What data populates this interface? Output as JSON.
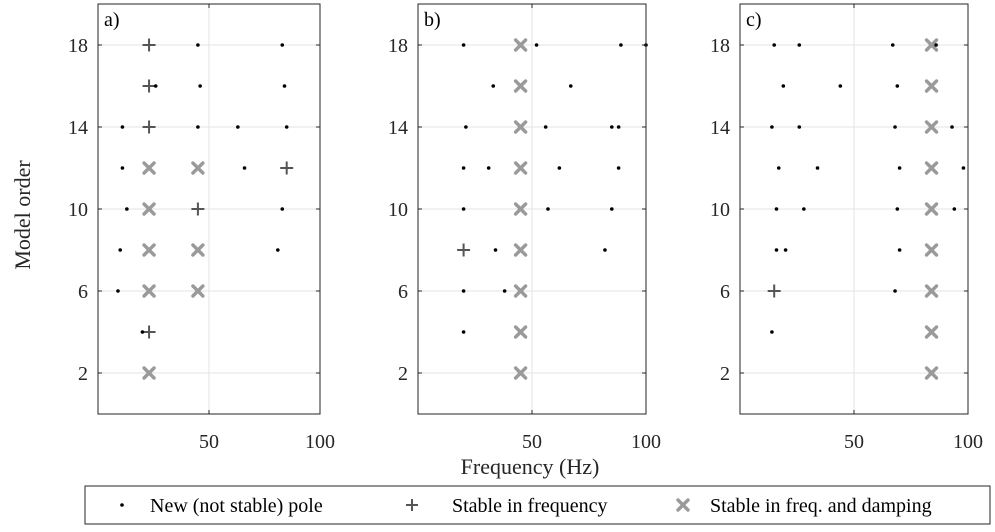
{
  "chart_data": {
    "type": "scatter",
    "xlabel": "Frequency (Hz)",
    "ylabel": "Model order",
    "ylim": [
      0,
      20
    ],
    "y_ticks": [
      2,
      6,
      10,
      14,
      18
    ],
    "grid": true,
    "legend_position": "bottom",
    "legend": [
      {
        "key": "new",
        "label": "New (not stable) pole"
      },
      {
        "key": "freq",
        "label": "Stable in frequency"
      },
      {
        "key": "damp",
        "label": "Stable in freq. and damping"
      }
    ],
    "styles": {
      "new_color": "#000000",
      "freq_color": "#555555",
      "damp_color": "#9a9a9a"
    },
    "panels": [
      {
        "label": "a)",
        "xlim": [
          0,
          100
        ],
        "x_ticks": [
          50,
          100
        ],
        "series": {
          "new": [
            [
              11,
              14
            ],
            [
              11,
              12
            ],
            [
              10,
              8
            ],
            [
              9,
              6
            ],
            [
              13,
              10
            ],
            [
              20,
              4
            ],
            [
              26,
              16
            ],
            [
              45,
              18
            ],
            [
              46,
              16
            ],
            [
              45,
              14
            ],
            [
              63,
              14
            ],
            [
              66,
              12
            ],
            [
              83,
              18
            ],
            [
              84,
              16
            ],
            [
              85,
              14
            ],
            [
              83,
              10
            ],
            [
              81,
              8
            ]
          ],
          "freq": [
            [
              23,
              18
            ],
            [
              23,
              16
            ],
            [
              23,
              14
            ],
            [
              23,
              4
            ],
            [
              45,
              10
            ],
            [
              85,
              12
            ]
          ],
          "damp": [
            [
              23,
              12
            ],
            [
              23,
              10
            ],
            [
              23,
              8
            ],
            [
              23,
              6
            ],
            [
              23,
              2
            ],
            [
              45,
              12
            ],
            [
              45,
              8
            ],
            [
              45,
              6
            ]
          ]
        }
      },
      {
        "label": "b)",
        "xlim": [
          0,
          100
        ],
        "x_ticks": [
          50,
          100
        ],
        "series": {
          "new": [
            [
              20,
              18
            ],
            [
              21,
              14
            ],
            [
              20,
              12
            ],
            [
              20,
              10
            ],
            [
              20,
              6
            ],
            [
              20,
              4
            ],
            [
              31,
              12
            ],
            [
              33,
              16
            ],
            [
              34,
              8
            ],
            [
              38,
              6
            ],
            [
              52,
              18
            ],
            [
              56,
              14
            ],
            [
              62,
              12
            ],
            [
              67,
              16
            ],
            [
              89,
              18
            ],
            [
              85,
              14
            ],
            [
              88,
              14
            ],
            [
              88,
              12
            ],
            [
              85,
              10
            ],
            [
              82,
              8
            ],
            [
              57,
              10
            ],
            [
              100,
              18
            ]
          ],
          "freq": [
            [
              20,
              8
            ]
          ],
          "damp": [
            [
              45,
              18
            ],
            [
              45,
              16
            ],
            [
              45,
              14
            ],
            [
              45,
              12
            ],
            [
              45,
              10
            ],
            [
              45,
              8
            ],
            [
              45,
              6
            ],
            [
              45,
              4
            ],
            [
              45,
              2
            ]
          ]
        }
      },
      {
        "label": "c)",
        "xlim": [
          0,
          100
        ],
        "x_ticks": [
          50,
          100
        ],
        "series": {
          "new": [
            [
              15,
              18
            ],
            [
              14,
              14
            ],
            [
              17,
              12
            ],
            [
              16,
              10
            ],
            [
              16,
              8
            ],
            [
              20,
              8
            ],
            [
              14,
              4
            ],
            [
              19,
              16
            ],
            [
              26,
              18
            ],
            [
              26,
              14
            ],
            [
              28,
              10
            ],
            [
              34,
              12
            ],
            [
              44,
              16
            ],
            [
              67,
              18
            ],
            [
              69,
              16
            ],
            [
              68,
              14
            ],
            [
              70,
              12
            ],
            [
              69,
              10
            ],
            [
              70,
              8
            ],
            [
              68,
              6
            ],
            [
              86,
              18
            ],
            [
              93,
              14
            ],
            [
              94,
              10
            ],
            [
              98,
              12
            ]
          ],
          "freq": [
            [
              15,
              6
            ]
          ],
          "damp": [
            [
              84,
              18
            ],
            [
              84,
              16
            ],
            [
              84,
              14
            ],
            [
              84,
              12
            ],
            [
              84,
              10
            ],
            [
              84,
              8
            ],
            [
              84,
              6
            ],
            [
              84,
              4
            ],
            [
              84,
              2
            ]
          ]
        }
      }
    ]
  }
}
